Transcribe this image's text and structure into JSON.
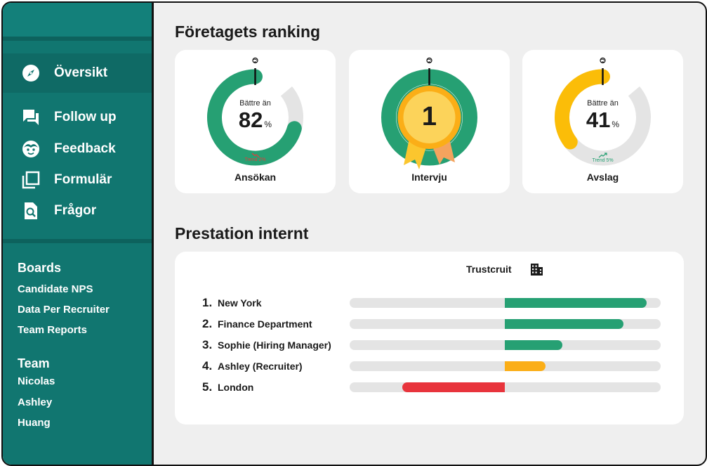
{
  "sidebar": {
    "nav": [
      {
        "label": "Översikt",
        "icon": "compass-icon",
        "active": true
      },
      {
        "label": "Follow up",
        "icon": "chat-icon",
        "active": false
      },
      {
        "label": "Feedback",
        "icon": "face-icon",
        "active": false
      },
      {
        "label": "Formulär",
        "icon": "copy-icon",
        "active": false
      },
      {
        "label": "Frågor",
        "icon": "search-document-icon",
        "active": false
      }
    ],
    "boards_heading": "Boards",
    "boards": [
      "Candidate NPS",
      "Data Per Recruiter",
      "Team Reports"
    ],
    "team_heading": "Team",
    "team": [
      "Nicolas",
      "Ashley",
      "Huang"
    ]
  },
  "ranking": {
    "title": "Företagets ranking",
    "cards": [
      {
        "caption": "Ansökan",
        "better_label": "Bättre än",
        "value": "82",
        "unit": "%",
        "fraction": 0.82,
        "trend_label": "Trend 2%",
        "trend_direction": "down",
        "trend_color": "#e43b3b",
        "arc_color": "#26a073"
      },
      {
        "caption": "Intervju",
        "rank": "1",
        "type": "medal"
      },
      {
        "caption": "Avslag",
        "better_label": "Bättre än",
        "value": "41",
        "unit": "%",
        "fraction": 0.41,
        "trend_label": "Trend 5%",
        "trend_direction": "up",
        "trend_color": "#26a073",
        "arc_color": "#fbbd08"
      }
    ]
  },
  "performance": {
    "title": "Prestation internt",
    "company": "Trustcruit",
    "rows": [
      {
        "rank": "1.",
        "name": "New York",
        "value": 0.91,
        "color": "#26a073"
      },
      {
        "rank": "2.",
        "name": "Finance Department",
        "value": 0.76,
        "color": "#26a073"
      },
      {
        "rank": "3.",
        "name": "Sophie (Hiring Manager)",
        "value": 0.37,
        "color": "#26a073"
      },
      {
        "rank": "4.",
        "name": "Ashley (Recruiter)",
        "value": 0.26,
        "color": "#fbae17"
      },
      {
        "rank": "5.",
        "name": "London",
        "value": -0.66,
        "color": "#e8343c"
      }
    ]
  }
}
